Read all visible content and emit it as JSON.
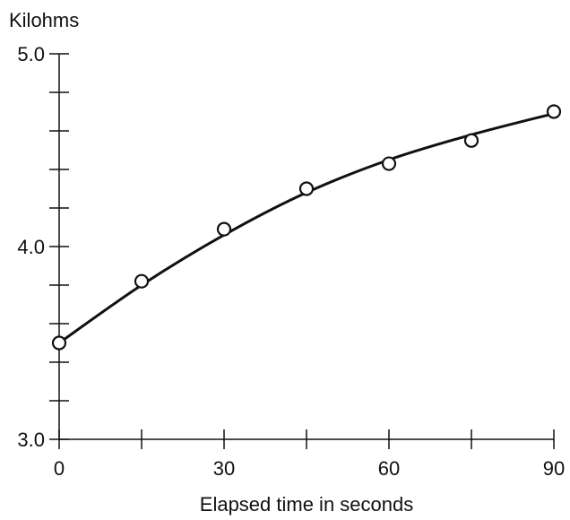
{
  "chart_data": {
    "type": "scatter",
    "title": "",
    "ylabel": "Kilohms",
    "xlabel": "Elapsed time in seconds",
    "xlim": [
      0,
      90
    ],
    "ylim": [
      3.0,
      5.0
    ],
    "x_major_ticks": [
      0,
      30,
      60,
      90
    ],
    "x_tick_labels": [
      "0",
      "30",
      "60",
      "90"
    ],
    "x_minor_ticks": [
      15,
      45,
      75
    ],
    "y_major_ticks": [
      3.0,
      4.0,
      5.0
    ],
    "y_tick_labels": [
      "3.0",
      "4.0",
      "5.0"
    ],
    "y_minor_step": 0.2,
    "grid": false,
    "points": {
      "x": [
        0,
        15,
        30,
        45,
        60,
        75,
        90
      ],
      "y": [
        3.5,
        3.82,
        4.09,
        4.3,
        4.43,
        4.55,
        4.7
      ]
    },
    "fit_curve": {
      "x": [
        0,
        15,
        30,
        45,
        60,
        75,
        90
      ],
      "y": [
        3.5,
        3.8,
        4.06,
        4.28,
        4.45,
        4.58,
        4.69
      ]
    },
    "colors": {
      "ink": "#111111",
      "marker_fill": "#ffffff"
    }
  }
}
